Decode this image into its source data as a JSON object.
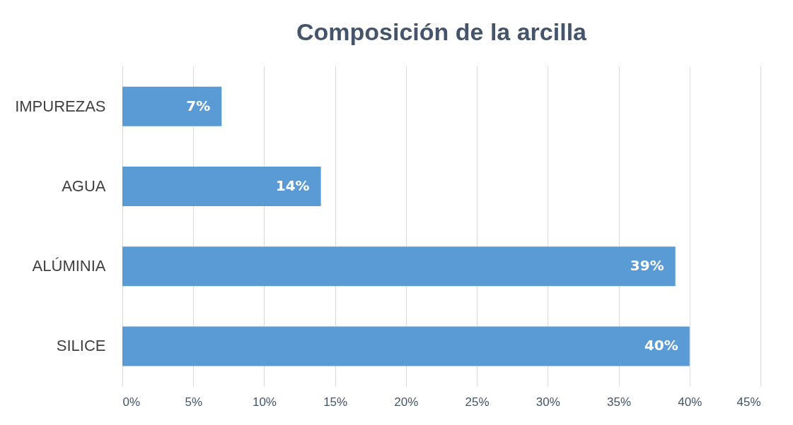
{
  "chart_data": {
    "type": "bar",
    "orientation": "horizontal",
    "title": "Composición de la arcilla",
    "categories": [
      "IMPUREZAS",
      "AGUA",
      "ALÚMINIA",
      "SILICE"
    ],
    "values": [
      7,
      14,
      39,
      40
    ],
    "value_labels": [
      "7%",
      "14%",
      "39%",
      "40%"
    ],
    "color": "#5b9bd5",
    "xlim": [
      0,
      45
    ],
    "xticks": [
      {
        "value": 0,
        "label": "0%"
      },
      {
        "value": 5,
        "label": "5%"
      },
      {
        "value": 10,
        "label": "10%"
      },
      {
        "value": 15,
        "label": "15%"
      },
      {
        "value": 20,
        "label": "20%"
      },
      {
        "value": 25,
        "label": "25%"
      },
      {
        "value": 30,
        "label": "30%"
      },
      {
        "value": 35,
        "label": "35%"
      },
      {
        "value": 40,
        "label": "40%"
      },
      {
        "value": 45,
        "label": "45%"
      }
    ],
    "grid": "x",
    "legend": false
  }
}
